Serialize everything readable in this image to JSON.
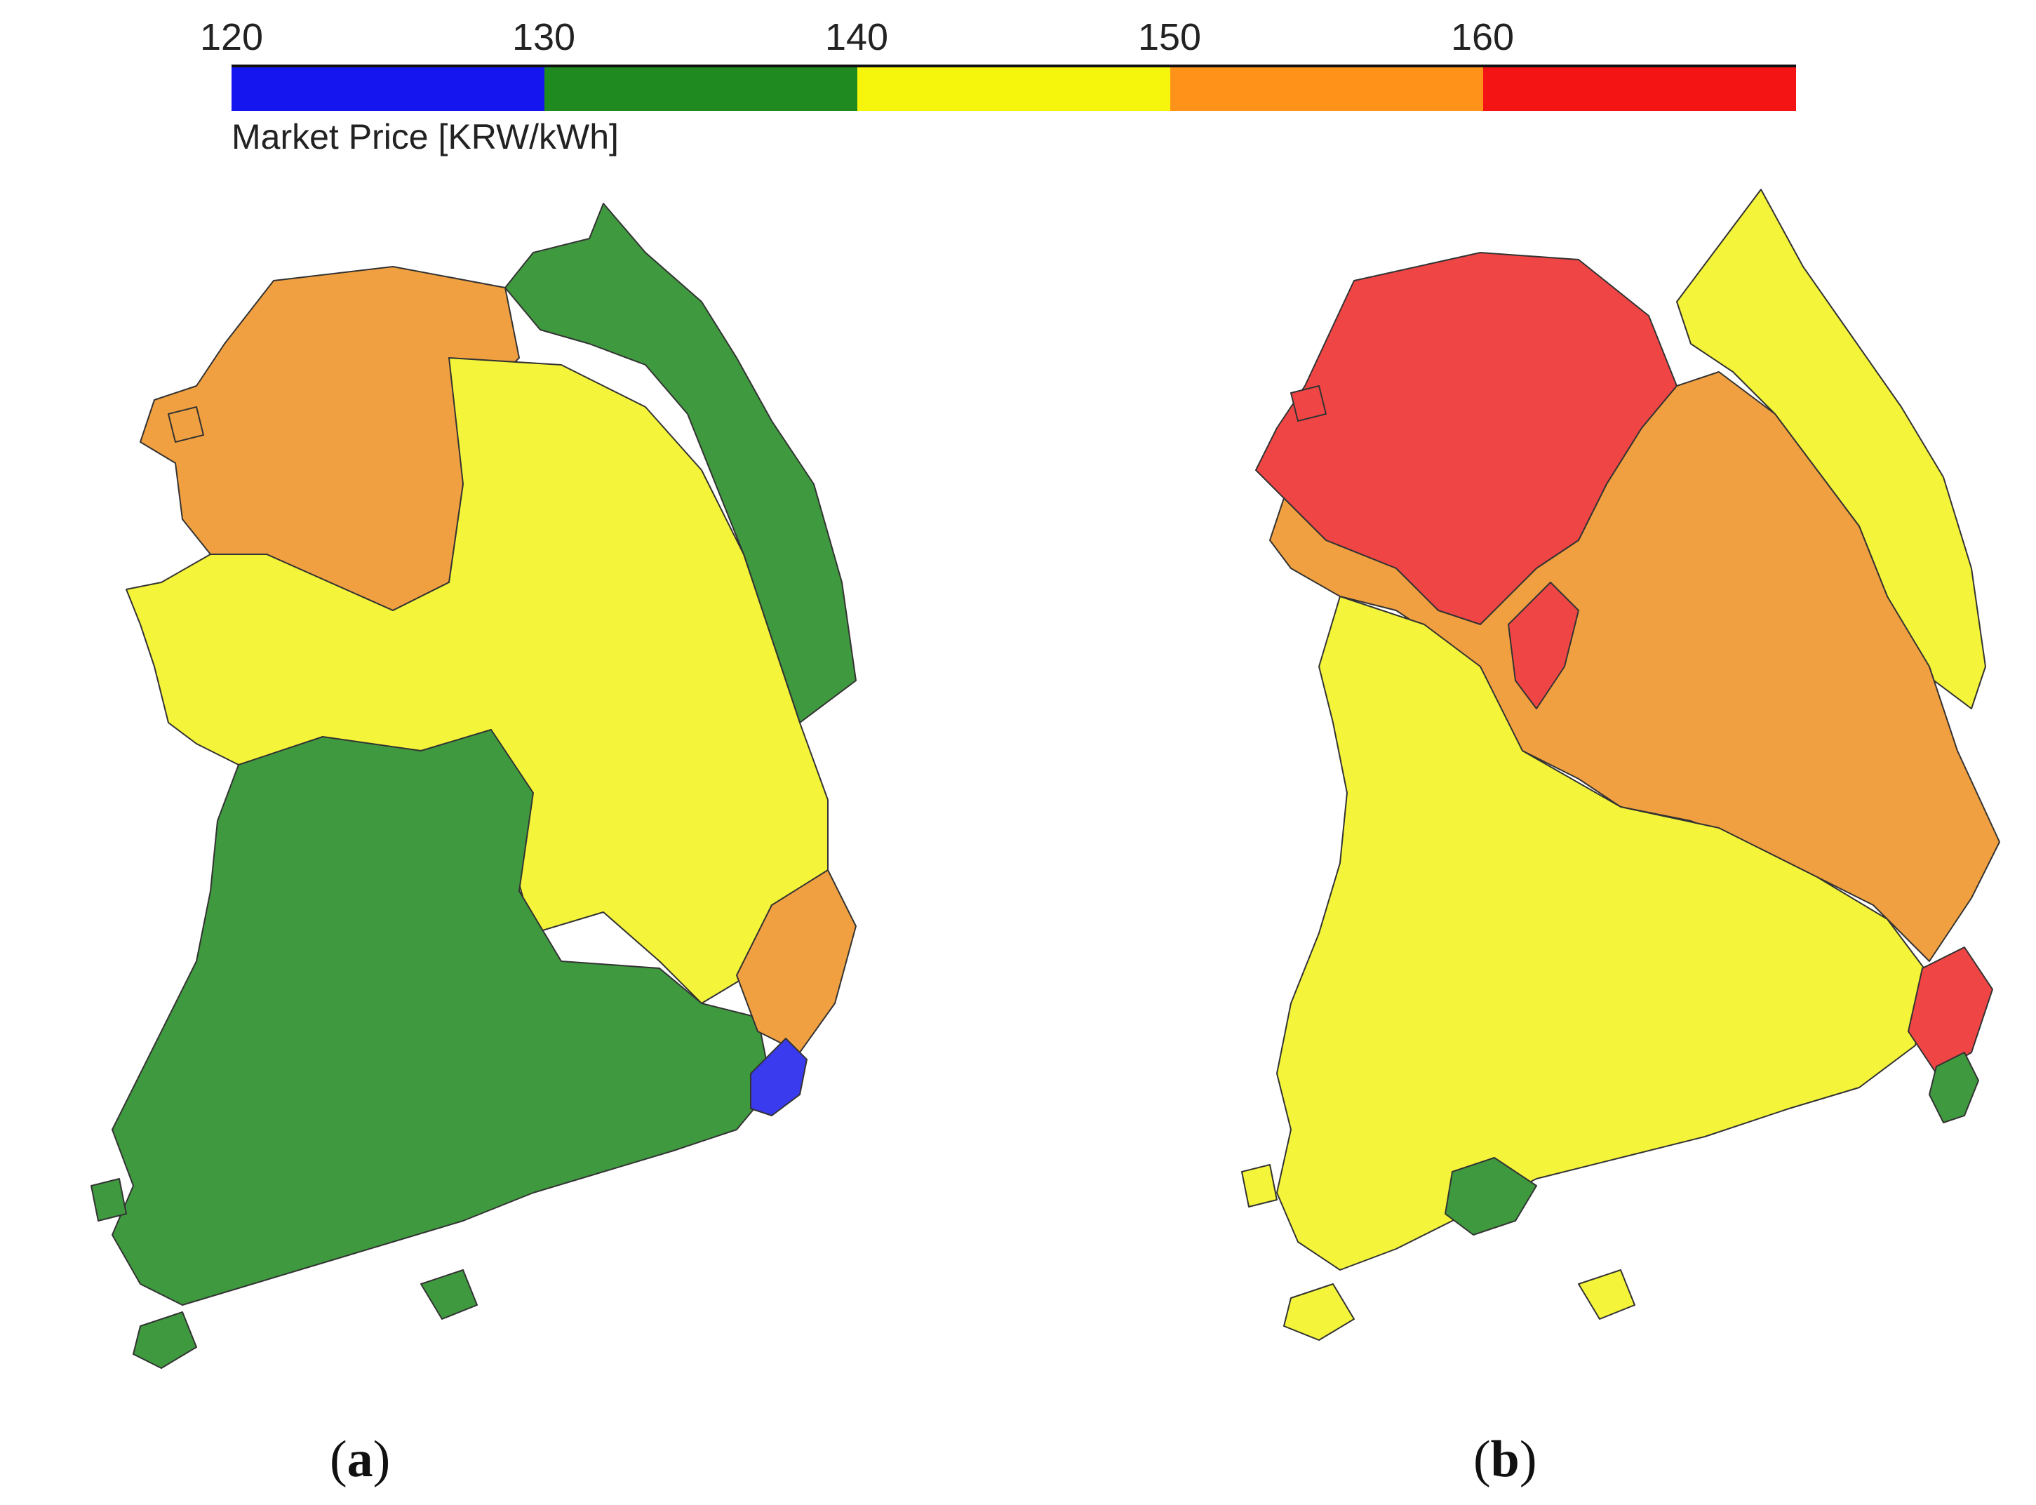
{
  "legend": {
    "title": "Market Price [KRW/kWh]",
    "ticks": [
      "120",
      "130",
      "140",
      "150",
      "160"
    ],
    "bins": [
      {
        "min": 120,
        "max": 130,
        "color": "#1515f0"
      },
      {
        "min": 130,
        "max": 140,
        "color": "#1f8a1f"
      },
      {
        "min": 140,
        "max": 150,
        "color": "#f6f60c"
      },
      {
        "min": 150,
        "max": 160,
        "color": "#ff931a"
      },
      {
        "min": 160,
        "max": 170,
        "color": "#f51414"
      }
    ]
  },
  "panels": [
    {
      "label": "a",
      "fill_colors": {
        "north": "#f0a040",
        "east": "#3f9a3f",
        "center": "#f4f43a",
        "south": "#3f9a3f",
        "busan": "#3a3aee"
      }
    },
    {
      "label": "b",
      "fill_colors": {
        "north": "#f04545",
        "east": "#f4f43a",
        "center": "#f0a040",
        "south": "#f4f43a",
        "busan": "#f04545"
      }
    }
  ]
}
